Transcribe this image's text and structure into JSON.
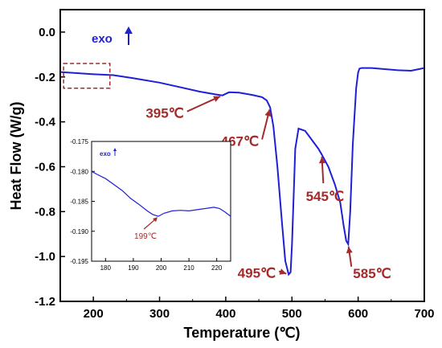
{
  "chart_data": [
    {
      "type": "line",
      "xlabel": "Temperature (℃)",
      "ylabel": "Heat Flow (W/g)",
      "xlim": [
        150,
        700
      ],
      "ylim": [
        -1.2,
        0.1
      ],
      "xticks": [
        200,
        300,
        400,
        500,
        600,
        700
      ],
      "yticks": [
        0.0,
        -0.2,
        -0.4,
        -0.6,
        -0.8,
        -1.0,
        -1.2
      ],
      "ytick_labels": [
        "0.0",
        "-0.2",
        "-0.4",
        "-0.6",
        "-0.8",
        "-1.0",
        "-1.2"
      ],
      "line_color": "#1f1fd6",
      "series": [
        {
          "x": [
            150,
            180,
            200,
            230,
            260,
            300,
            330,
            360,
            385,
            395,
            405,
            420,
            440,
            455,
            462,
            467,
            472,
            478,
            485,
            490,
            495,
            498,
            500,
            503,
            505,
            510,
            520,
            530,
            540,
            545,
            555,
            565,
            573,
            578,
            582,
            585,
            588,
            592,
            597,
            600,
            602,
            605,
            620,
            640,
            660,
            680,
            700
          ],
          "y": [
            -0.178,
            -0.184,
            -0.188,
            -0.192,
            -0.205,
            -0.225,
            -0.245,
            -0.265,
            -0.278,
            -0.282,
            -0.268,
            -0.27,
            -0.28,
            -0.29,
            -0.305,
            -0.335,
            -0.42,
            -0.6,
            -0.85,
            -1.02,
            -1.08,
            -1.07,
            -0.95,
            -0.7,
            -0.52,
            -0.43,
            -0.44,
            -0.48,
            -0.52,
            -0.545,
            -0.6,
            -0.68,
            -0.76,
            -0.86,
            -0.93,
            -0.945,
            -0.8,
            -0.5,
            -0.25,
            -0.18,
            -0.163,
            -0.16,
            -0.16,
            -0.165,
            -0.17,
            -0.172,
            -0.16
          ]
        }
      ],
      "annotations": [
        {
          "text": "exo",
          "arrow": "up"
        },
        {
          "text": "395℃",
          "x": 395,
          "y": -0.282
        },
        {
          "text": "467℃",
          "x": 467,
          "y": -0.335
        },
        {
          "text": "495℃",
          "x": 495,
          "y": -1.08
        },
        {
          "text": "545℃",
          "x": 545,
          "y": -0.545
        },
        {
          "text": "585℃",
          "x": 585,
          "y": -0.945
        }
      ],
      "highlight_box": {
        "x": [
          155,
          225
        ],
        "y": [
          -0.14,
          -0.25
        ]
      }
    },
    {
      "type": "line",
      "inset": true,
      "xlim": [
        175,
        225
      ],
      "ylim": [
        -0.195,
        -0.175
      ],
      "xticks": [
        180,
        190,
        200,
        210,
        220
      ],
      "yticks": [
        -0.175,
        -0.18,
        -0.185,
        -0.19,
        -0.195
      ],
      "ytick_labels": [
        "-0.175",
        "-0.180",
        "-0.185",
        "-0.190",
        "-0.195"
      ],
      "line_color": "#1f1fd6",
      "series": [
        {
          "x": [
            175,
            177,
            180,
            183,
            186,
            189,
            192,
            195,
            197,
            199,
            201,
            204,
            207,
            210,
            213,
            216,
            219,
            221,
            223,
            225
          ],
          "y": [
            -0.18,
            -0.1805,
            -0.1812,
            -0.1822,
            -0.1832,
            -0.1845,
            -0.1855,
            -0.1866,
            -0.1872,
            -0.1875,
            -0.187,
            -0.1866,
            -0.1865,
            -0.1866,
            -0.1864,
            -0.1862,
            -0.186,
            -0.1862,
            -0.1868,
            -0.1875
          ]
        }
      ],
      "annotations": [
        {
          "text": "exo",
          "arrow": "up"
        },
        {
          "text": "199℃",
          "x": 199,
          "y": -0.1875
        }
      ]
    }
  ]
}
